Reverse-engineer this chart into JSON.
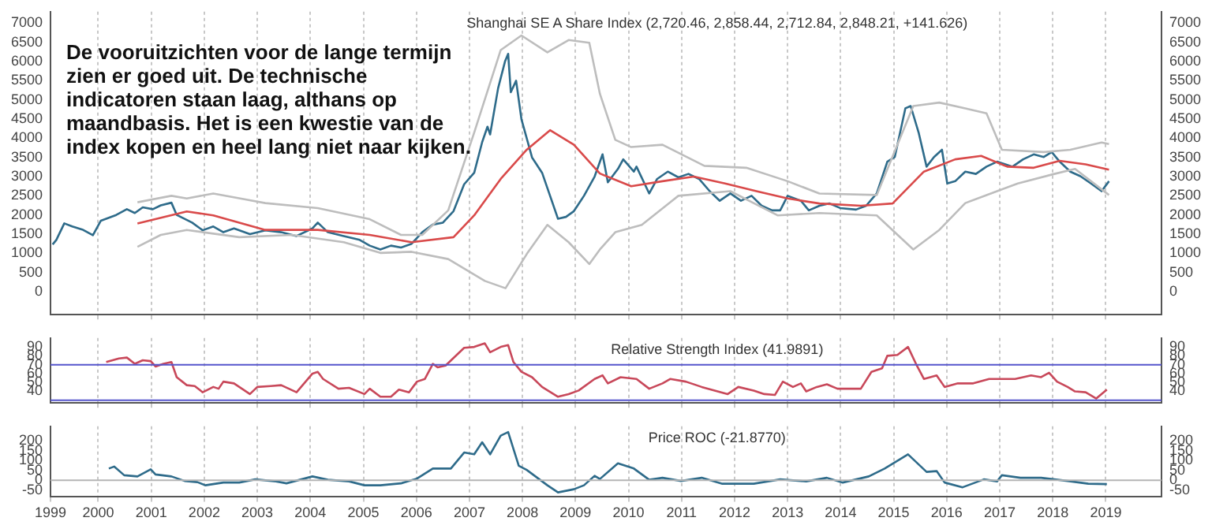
{
  "chart_data": [
    {
      "type": "line",
      "title": "Shanghai SE A Share Index (2,720.46, 2,858.44, 2,712.84, 2,848.21, +141.626)",
      "annotations": [
        "De vooruitzichten voor de lange termijn zien er goed uit. De technische indicatoren staan laag, althans op maandbasis. Het is een kwestie van de index kopen en heel lang niet naar kijken."
      ],
      "xlim": [
        1999.1,
        2020.05
      ],
      "xticks": [
        2000,
        2001,
        2002,
        2003,
        2004,
        2005,
        2006,
        2007,
        2008,
        2009,
        2010,
        2011,
        2012,
        2013,
        2014,
        2015,
        2016,
        2017,
        2018,
        2019
      ],
      "ylim": [
        -600,
        7300
      ],
      "yticks": [
        0,
        500,
        1000,
        1500,
        2000,
        2500,
        3000,
        3500,
        4000,
        4500,
        5000,
        5500,
        6000,
        6500,
        7000
      ],
      "y2lim": [
        -600,
        7300
      ],
      "y2ticks": [
        0,
        500,
        1000,
        1500,
        2000,
        2500,
        3000,
        3500,
        4000,
        4500,
        5000,
        5500,
        6000,
        6500,
        7000
      ],
      "grid": "x",
      "legend": false,
      "tick_labels": "y",
      "series": [
        {
          "color": "#bdbdbd",
          "x": [
            2000.74,
            2001.38,
            2001.67,
            2002.17,
            2003.15,
            2004.14,
            2005.12,
            2005.71,
            2006.11,
            2006.6,
            2007.09,
            2007.59,
            2007.98,
            2008.47,
            2008.87,
            2009.26,
            2009.46,
            2009.75,
            2010.05,
            2010.64,
            2011.43,
            2012.22,
            2013.0,
            2013.6,
            2014.68,
            2015.37,
            2015.86,
            2016.35,
            2016.75,
            2017.04,
            2017.83,
            2018.33,
            2018.92,
            2019.06
          ],
          "values": [
            2330,
            2500,
            2430,
            2560,
            2310,
            2180,
            1890,
            1480,
            1480,
            2120,
            4150,
            6300,
            6680,
            6240,
            6560,
            6490,
            5160,
            3960,
            3770,
            3830,
            3280,
            3230,
            2880,
            2560,
            2520,
            4840,
            4930,
            4780,
            4650,
            3700,
            3640,
            3700,
            3890,
            3850
          ]
        },
        {
          "color": "#bdbdbd",
          "x": [
            2000.74,
            2001.18,
            2001.67,
            2002.66,
            2003.65,
            2004.63,
            2005.32,
            2005.91,
            2006.6,
            2007.29,
            2007.68,
            2008.08,
            2008.47,
            2008.87,
            2009.26,
            2009.46,
            2009.75,
            2010.25,
            2010.94,
            2011.92,
            2012.81,
            2013.6,
            2014.68,
            2015.37,
            2015.86,
            2016.35,
            2016.95,
            2017.34,
            2018.03,
            2018.42,
            2019.06
          ],
          "values": [
            1170,
            1480,
            1610,
            1420,
            1480,
            1290,
            1010,
            1040,
            850,
            280,
            90,
            980,
            1740,
            1290,
            720,
            1100,
            1550,
            1740,
            2500,
            2620,
            1990,
            2050,
            1990,
            1100,
            1610,
            2310,
            2620,
            2820,
            3070,
            3200,
            2520
          ]
        },
        {
          "color": "#d94a4a",
          "x": [
            2000.74,
            2001.67,
            2002.17,
            2003.15,
            2004.14,
            2005.12,
            2005.91,
            2006.7,
            2007.09,
            2007.59,
            2008.08,
            2008.52,
            2008.97,
            2009.46,
            2010.05,
            2010.64,
            2011.23,
            2011.82,
            2012.41,
            2013.0,
            2013.6,
            2014.38,
            2014.98,
            2015.57,
            2016.16,
            2016.65,
            2017.14,
            2017.64,
            2018.13,
            2018.62,
            2019.06
          ],
          "values": [
            1780,
            2090,
            1990,
            1610,
            1610,
            1480,
            1290,
            1420,
            1990,
            2940,
            3700,
            4210,
            3830,
            3080,
            2750,
            2880,
            3000,
            2820,
            2620,
            2430,
            2300,
            2240,
            2300,
            3130,
            3450,
            3540,
            3260,
            3230,
            3410,
            3320,
            3180
          ]
        },
        {
          "color": "#2e6b8a",
          "x": [
            1999.14,
            1999.21,
            1999.36,
            1999.51,
            1999.7,
            1999.9,
            2000.05,
            2000.34,
            2000.54,
            2000.69,
            2000.84,
            2001.03,
            2001.18,
            2001.38,
            2001.48,
            2001.77,
            2001.97,
            2002.17,
            2002.36,
            2002.56,
            2002.86,
            2003.15,
            2003.45,
            2003.74,
            2004.04,
            2004.14,
            2004.33,
            2004.63,
            2004.93,
            2005.12,
            2005.32,
            2005.52,
            2005.71,
            2005.91,
            2006.11,
            2006.31,
            2006.5,
            2006.7,
            2006.9,
            2007.09,
            2007.24,
            2007.34,
            2007.39,
            2007.54,
            2007.67,
            2007.73,
            2007.78,
            2007.88,
            2007.98,
            2008.08,
            2008.18,
            2008.37,
            2008.52,
            2008.67,
            2008.82,
            2008.97,
            2009.16,
            2009.36,
            2009.51,
            2009.61,
            2009.8,
            2009.9,
            2010.1,
            2010.15,
            2010.39,
            2010.54,
            2010.74,
            2010.94,
            2011.13,
            2011.33,
            2011.53,
            2011.72,
            2011.92,
            2012.12,
            2012.32,
            2012.51,
            2012.71,
            2012.86,
            2013.0,
            2013.25,
            2013.4,
            2013.6,
            2013.79,
            2013.99,
            2014.29,
            2014.48,
            2014.68,
            2014.88,
            2015.02,
            2015.22,
            2015.32,
            2015.47,
            2015.62,
            2015.76,
            2015.91,
            2016.01,
            2016.16,
            2016.35,
            2016.55,
            2016.75,
            2016.95,
            2017.24,
            2017.44,
            2017.64,
            2017.83,
            2017.98,
            2018.13,
            2018.33,
            2018.52,
            2018.72,
            2018.92,
            2019.06
          ],
          "values": [
            1230,
            1350,
            1780,
            1700,
            1620,
            1470,
            1850,
            2000,
            2150,
            2050,
            2200,
            2150,
            2250,
            2320,
            2000,
            1800,
            1600,
            1700,
            1550,
            1650,
            1500,
            1600,
            1550,
            1450,
            1650,
            1800,
            1550,
            1450,
            1350,
            1200,
            1100,
            1200,
            1150,
            1250,
            1550,
            1750,
            1800,
            2100,
            2800,
            3100,
            3900,
            4300,
            4100,
            5300,
            6000,
            6200,
            5200,
            5500,
            4500,
            4000,
            3500,
            3100,
            2500,
            1900,
            1950,
            2100,
            2500,
            3000,
            3580,
            2850,
            3200,
            3450,
            3130,
            3260,
            2560,
            2940,
            3130,
            2980,
            3070,
            2940,
            2620,
            2370,
            2560,
            2370,
            2500,
            2240,
            2120,
            2120,
            2500,
            2370,
            2120,
            2240,
            2300,
            2180,
            2140,
            2240,
            2560,
            3390,
            3510,
            4780,
            4840,
            4150,
            3260,
            3510,
            3700,
            2820,
            2880,
            3130,
            3070,
            3260,
            3390,
            3260,
            3450,
            3580,
            3510,
            3640,
            3390,
            3130,
            3010,
            2820,
            2620,
            2880
          ]
        }
      ]
    },
    {
      "type": "line",
      "title": "Relative Strength Index (41.9891)",
      "xlim": [
        1999.1,
        2020.05
      ],
      "xticks": [
        2000,
        2001,
        2002,
        2003,
        2004,
        2005,
        2006,
        2007,
        2008,
        2009,
        2010,
        2011,
        2012,
        2013,
        2014,
        2015,
        2016,
        2017,
        2018,
        2019
      ],
      "ylim": [
        27,
        100
      ],
      "yticks": [
        40,
        50,
        60,
        70,
        80,
        90
      ],
      "y2lim": [
        27,
        100
      ],
      "y2ticks": [
        40,
        50,
        60,
        70,
        80,
        90
      ],
      "grid": "x",
      "legend": false,
      "tick_labels": "y",
      "ref_lines": [
        {
          "axis": "y",
          "value": 70,
          "color": "#5555cc"
        },
        {
          "axis": "y",
          "value": 30,
          "color": "#5555cc"
        }
      ],
      "series": [
        {
          "color": "#c8485a",
          "x": [
            2000.15,
            2000.39,
            2000.54,
            2000.69,
            2000.84,
            2000.99,
            2001.08,
            2001.23,
            2001.38,
            2001.48,
            2001.67,
            2001.82,
            2001.97,
            2002.17,
            2002.27,
            2002.36,
            2002.56,
            2002.86,
            2003.0,
            2003.25,
            2003.45,
            2003.74,
            2004.04,
            2004.14,
            2004.24,
            2004.53,
            2004.73,
            2005.02,
            2005.12,
            2005.32,
            2005.52,
            2005.67,
            2005.86,
            2006.01,
            2006.16,
            2006.31,
            2006.4,
            2006.55,
            2006.9,
            2007.09,
            2007.29,
            2007.39,
            2007.59,
            2007.73,
            2007.83,
            2007.98,
            2008.18,
            2008.37,
            2008.67,
            2008.87,
            2009.06,
            2009.36,
            2009.51,
            2009.61,
            2009.85,
            2010.15,
            2010.39,
            2010.64,
            2010.79,
            2011.08,
            2011.38,
            2011.87,
            2012.07,
            2012.36,
            2012.56,
            2012.76,
            2012.91,
            2013.1,
            2013.25,
            2013.35,
            2013.55,
            2013.74,
            2013.94,
            2014.24,
            2014.38,
            2014.58,
            2014.78,
            2014.88,
            2015.07,
            2015.27,
            2015.42,
            2015.57,
            2015.81,
            2015.96,
            2016.21,
            2016.5,
            2016.8,
            2017.0,
            2017.29,
            2017.59,
            2017.78,
            2017.93,
            2018.08,
            2018.28,
            2018.42,
            2018.62,
            2018.82,
            2019.02
          ],
          "values": [
            73,
            77,
            78,
            71,
            75,
            74,
            68,
            71,
            73,
            56,
            47,
            46,
            39,
            45,
            43,
            51,
            49,
            37,
            45,
            46,
            47,
            39,
            60,
            62,
            54,
            43,
            44,
            37,
            43,
            34,
            34,
            42,
            39,
            51,
            54,
            71,
            67,
            69,
            89,
            90,
            94,
            84,
            90,
            92,
            73,
            62,
            56,
            45,
            34,
            37,
            41,
            54,
            58,
            49,
            56,
            54,
            43,
            49,
            54,
            51,
            45,
            37,
            45,
            41,
            37,
            36,
            51,
            45,
            49,
            40,
            45,
            48,
            43,
            43,
            43,
            62,
            66,
            80,
            81,
            90,
            71,
            54,
            58,
            45,
            49,
            49,
            54,
            54,
            54,
            58,
            56,
            61,
            51,
            45,
            40,
            39,
            32,
            42
          ]
        }
      ]
    },
    {
      "type": "line",
      "title": "Price ROC (-21.8770)",
      "xlim": [
        1999.1,
        2020.05
      ],
      "xticks": [
        {
          "value": 1999.1,
          "label": "1999"
        },
        2000,
        2001,
        2002,
        2003,
        2004,
        2005,
        2006,
        2007,
        2008,
        2009,
        2010,
        2011,
        2012,
        2013,
        2014,
        2015,
        2016,
        2017,
        2018,
        2019
      ],
      "ylim": [
        -85,
        273
      ],
      "yticks": [
        -50,
        0,
        50,
        100,
        150,
        200
      ],
      "y2lim": [
        -85,
        273
      ],
      "y2ticks": [
        -50,
        0,
        50,
        100,
        150,
        200
      ],
      "grid": "x",
      "legend": false,
      "ref_lines": [
        {
          "axis": "y",
          "value": 0,
          "color": "#b5b5b5"
        }
      ],
      "series": [
        {
          "color": "#2e6b8a",
          "x": [
            2000.2,
            2000.3,
            2000.49,
            2000.74,
            2000.99,
            2001.08,
            2001.38,
            2001.63,
            2001.87,
            2002.02,
            2002.36,
            2002.66,
            2002.96,
            2003.35,
            2003.55,
            2004.04,
            2004.33,
            2004.73,
            2005.02,
            2005.32,
            2005.71,
            2006.01,
            2006.31,
            2006.65,
            2006.9,
            2007.09,
            2007.24,
            2007.39,
            2007.59,
            2007.73,
            2007.93,
            2008.08,
            2008.28,
            2008.47,
            2008.67,
            2008.97,
            2009.16,
            2009.36,
            2009.46,
            2009.8,
            2010.1,
            2010.39,
            2010.64,
            2010.99,
            2011.38,
            2011.77,
            2012.36,
            2012.86,
            2013.35,
            2013.74,
            2014.04,
            2014.53,
            2014.83,
            2015.27,
            2015.62,
            2015.81,
            2015.96,
            2016.3,
            2016.7,
            2016.95,
            2017.04,
            2017.39,
            2017.78,
            2018.28,
            2018.67,
            2019.02
          ],
          "values": [
            59,
            69,
            25,
            19,
            55,
            29,
            19,
            -4,
            -10,
            -26,
            -12,
            -12,
            4,
            -6,
            -16,
            19,
            2,
            -6,
            -26,
            -26,
            -16,
            8,
            59,
            59,
            140,
            131,
            192,
            131,
            226,
            244,
            73,
            52,
            12,
            -26,
            -62,
            -46,
            -26,
            22,
            6,
            85,
            59,
            2,
            12,
            -4,
            12,
            -18,
            -18,
            4,
            -6,
            12,
            -12,
            19,
            59,
            131,
            42,
            46,
            -12,
            -36,
            4,
            -6,
            25,
            12,
            12,
            -4,
            -18,
            -20
          ]
        }
      ]
    }
  ]
}
